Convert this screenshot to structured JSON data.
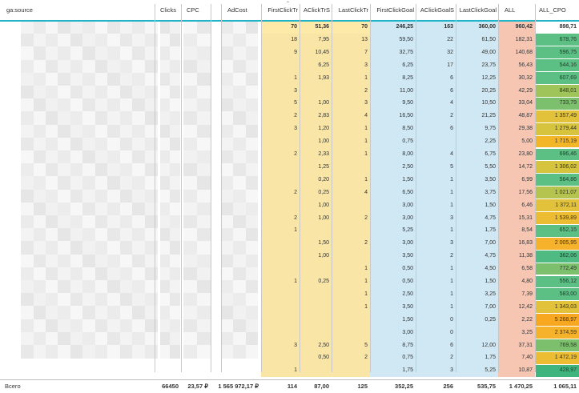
{
  "columns": [
    {
      "key": "source",
      "label": "ga:source"
    },
    {
      "key": "clicks",
      "label": "Clicks"
    },
    {
      "key": "cpc",
      "label": "CPC"
    },
    {
      "key": "adcost",
      "label": "AdCost"
    },
    {
      "key": "fct",
      "label": "FirstClickTr"
    },
    {
      "key": "act",
      "label": "AClickTrS"
    },
    {
      "key": "lct",
      "label": "LastClickTr"
    },
    {
      "key": "fcg",
      "label": "FirstClickGoal"
    },
    {
      "key": "acg",
      "label": "AClickGoalS"
    },
    {
      "key": "lcg",
      "label": "LastClickGoal"
    },
    {
      "key": "all",
      "label": "ALL"
    },
    {
      "key": "allcpo",
      "label": "ALL_CPO"
    }
  ],
  "summary_row": {
    "fct": "70",
    "act": "51,36",
    "lct": "70",
    "fcg": "246,25",
    "acg": "163",
    "lcg": "360,00",
    "all": "960,42",
    "allcpo": "898,71"
  },
  "rows": [
    {
      "fct": "18",
      "act": "7,95",
      "lct": "13",
      "fcg": "59,50",
      "acg": "22",
      "lcg": "61,50",
      "all": "182,31",
      "allcpo": "678,76",
      "cpo_color": "#5cbf84"
    },
    {
      "fct": "9",
      "act": "10,45",
      "lct": "7",
      "fcg": "32,75",
      "acg": "32",
      "lcg": "49,00",
      "all": "140,68",
      "allcpo": "596,75",
      "cpo_color": "#5cbf84"
    },
    {
      "fct": "",
      "act": "6,25",
      "lct": "3",
      "fcg": "6,25",
      "acg": "17",
      "lcg": "23,75",
      "all": "56,43",
      "allcpo": "544,16",
      "cpo_color": "#5cbf84"
    },
    {
      "fct": "1",
      "act": "1,93",
      "lct": "1",
      "fcg": "8,25",
      "acg": "6",
      "lcg": "12,25",
      "all": "30,32",
      "allcpo": "607,69",
      "cpo_color": "#5cbf84"
    },
    {
      "fct": "3",
      "act": "",
      "lct": "2",
      "fcg": "11,00",
      "acg": "6",
      "lcg": "20,25",
      "all": "42,29",
      "allcpo": "848,01",
      "cpo_color": "#9fc45a"
    },
    {
      "fct": "5",
      "act": "1,00",
      "lct": "3",
      "fcg": "9,50",
      "acg": "4",
      "lcg": "10,50",
      "all": "33,04",
      "allcpo": "733,79",
      "cpo_color": "#7cc06d"
    },
    {
      "fct": "2",
      "act": "2,83",
      "lct": "4",
      "fcg": "16,50",
      "acg": "2",
      "lcg": "21,25",
      "all": "48,87",
      "allcpo": "1 357,49",
      "cpo_color": "#e2c23a"
    },
    {
      "fct": "3",
      "act": "1,20",
      "lct": "1",
      "fcg": "8,50",
      "acg": "6",
      "lcg": "9,75",
      "all": "29,38",
      "allcpo": "1 279,44",
      "cpo_color": "#d6c33e"
    },
    {
      "fct": "",
      "act": "1,00",
      "lct": "1",
      "fcg": "0,75",
      "acg": "",
      "lcg": "2,25",
      "all": "5,00",
      "allcpo": "1 715,19",
      "cpo_color": "#f3b628"
    },
    {
      "fct": "2",
      "act": "2,33",
      "lct": "1",
      "fcg": "8,00",
      "acg": "4",
      "lcg": "6,75",
      "all": "23,80",
      "allcpo": "696,46",
      "cpo_color": "#5cbf84"
    },
    {
      "fct": "",
      "act": "1,25",
      "lct": "",
      "fcg": "2,50",
      "acg": "5",
      "lcg": "5,50",
      "all": "14,72",
      "allcpo": "1 306,02",
      "cpo_color": "#d6c33e"
    },
    {
      "fct": "",
      "act": "0,20",
      "lct": "1",
      "fcg": "1,50",
      "acg": "1",
      "lcg": "3,50",
      "all": "6,99",
      "allcpo": "564,86",
      "cpo_color": "#5cbf84"
    },
    {
      "fct": "2",
      "act": "0,25",
      "lct": "4",
      "fcg": "6,50",
      "acg": "1",
      "lcg": "3,75",
      "all": "17,56",
      "allcpo": "1 021,07",
      "cpo_color": "#b4c44e"
    },
    {
      "fct": "",
      "act": "1,00",
      "lct": "",
      "fcg": "3,00",
      "acg": "1",
      "lcg": "1,50",
      "all": "6,46",
      "allcpo": "1 372,11",
      "cpo_color": "#e2c23a"
    },
    {
      "fct": "2",
      "act": "1,00",
      "lct": "2",
      "fcg": "3,00",
      "acg": "3",
      "lcg": "4,75",
      "all": "15,31",
      "allcpo": "1 539,89",
      "cpo_color": "#ecbd32"
    },
    {
      "fct": "1",
      "act": "",
      "lct": "",
      "fcg": "5,25",
      "acg": "1",
      "lcg": "1,75",
      "all": "8,54",
      "allcpo": "652,15",
      "cpo_color": "#5cbf84"
    },
    {
      "fct": "",
      "act": "1,50",
      "lct": "2",
      "fcg": "3,00",
      "acg": "3",
      "lcg": "7,00",
      "all": "16,83",
      "allcpo": "2 005,95",
      "cpo_color": "#f6b22a"
    },
    {
      "fct": "",
      "act": "1,00",
      "lct": "",
      "fcg": "3,50",
      "acg": "2",
      "lcg": "4,75",
      "all": "11,38",
      "allcpo": "362,06",
      "cpo_color": "#4fba82"
    },
    {
      "fct": "",
      "act": "",
      "lct": "1",
      "fcg": "0,50",
      "acg": "1",
      "lcg": "4,50",
      "all": "6,58",
      "allcpo": "772,49",
      "cpo_color": "#7cc06d"
    },
    {
      "fct": "1",
      "act": "0,25",
      "lct": "1",
      "fcg": "0,50",
      "acg": "1",
      "lcg": "1,50",
      "all": "4,80",
      "allcpo": "556,12",
      "cpo_color": "#5cbf84"
    },
    {
      "fct": "",
      "act": "",
      "lct": "1",
      "fcg": "2,50",
      "acg": "1",
      "lcg": "3,25",
      "all": "7,39",
      "allcpo": "583,00",
      "cpo_color": "#5cbf84"
    },
    {
      "fct": "",
      "act": "",
      "lct": "1",
      "fcg": "3,50",
      "acg": "1",
      "lcg": "7,00",
      "all": "12,42",
      "allcpo": "1 343,03",
      "cpo_color": "#e2c23a"
    },
    {
      "fct": "",
      "act": "",
      "lct": "",
      "fcg": "1,50",
      "acg": "0",
      "lcg": "0,25",
      "all": "2,22",
      "allcpo": "5 268,97",
      "cpo_color": "#f7a820"
    },
    {
      "fct": "",
      "act": "",
      "lct": "",
      "fcg": "3,00",
      "acg": "0",
      "lcg": "",
      "all": "3,25",
      "allcpo": "2 374,59",
      "cpo_color": "#f6b22a"
    },
    {
      "fct": "3",
      "act": "2,50",
      "lct": "5",
      "fcg": "8,75",
      "acg": "6",
      "lcg": "12,00",
      "all": "37,31",
      "allcpo": "769,58",
      "cpo_color": "#7cc06d"
    },
    {
      "fct": "",
      "act": "0,50",
      "lct": "2",
      "fcg": "0,75",
      "acg": "2",
      "lcg": "1,75",
      "all": "7,40",
      "allcpo": "1 472,19",
      "cpo_color": "#ecbd32"
    },
    {
      "fct": "1",
      "act": "",
      "lct": "",
      "fcg": "1,75",
      "acg": "3",
      "lcg": "5,25",
      "all": "10,87",
      "allcpo": "428,97",
      "cpo_color": "#3fb47c"
    }
  ],
  "total_row": {
    "label": "Всего",
    "clicks": "66450",
    "cpc": "23,57 ₽",
    "adcost": "1 565 972,17 ₽",
    "fct": "114",
    "act": "87,00",
    "lct": "125",
    "fcg": "352,25",
    "acg": "256",
    "lcg": "535,75",
    "all": "1 470,25",
    "allcpo": "1 065,11"
  },
  "colors": {
    "yellow_band": "#f9e6a6",
    "blue_band": "#cfe8f3",
    "all_band": "#f7c6b3",
    "summary_highlight": "#fde9a8",
    "header_underline": "#20b4c8"
  }
}
